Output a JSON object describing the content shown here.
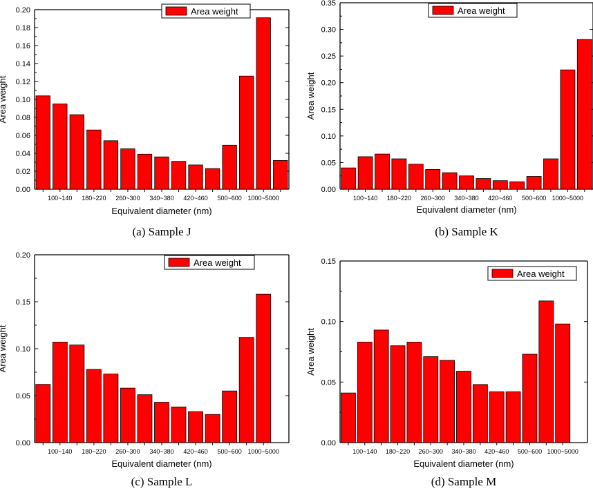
{
  "colors": {
    "bar_fill": "#ff0000",
    "bar_stroke": "#000000"
  },
  "chart_data": [
    {
      "type": "bar",
      "caption": "(a) Sample J",
      "legend": "Area weight",
      "xlabel": "Equivalent diameter (nm)",
      "ylabel": "Area weight",
      "ylim": [
        0,
        0.2
      ],
      "yticks": [
        "0.00",
        "0.02",
        "0.04",
        "0.06",
        "0.08",
        "0.10",
        "0.12",
        "0.14",
        "0.16",
        "0.18",
        "0.20"
      ],
      "tick_labels": [
        "100~140",
        "180~220",
        "260~300",
        "340~380",
        "420~460",
        "500~600",
        "1000~5000"
      ],
      "values": [
        0.104,
        0.095,
        0.083,
        0.066,
        0.054,
        0.045,
        0.039,
        0.036,
        0.031,
        0.027,
        0.023,
        0.049,
        0.126,
        0.191,
        0.032
      ]
    },
    {
      "type": "bar",
      "caption": "(b) Sample K",
      "legend": "Area weight",
      "xlabel": "Equivalent diameter (nm)",
      "ylabel": "Area weight",
      "ylim": [
        0,
        0.35
      ],
      "yticks": [
        "0.00",
        "0.05",
        "0.10",
        "0.15",
        "0.20",
        "0.25",
        "0.30",
        "0.35"
      ],
      "tick_labels": [
        "100~140",
        "180~220",
        "260~300",
        "340~380",
        "420~460",
        "500~600",
        "1000~5000"
      ],
      "values": [
        0.04,
        0.061,
        0.066,
        0.057,
        0.047,
        0.037,
        0.031,
        0.025,
        0.02,
        0.016,
        0.014,
        0.024,
        0.057,
        0.224,
        0.281
      ]
    },
    {
      "type": "bar",
      "caption": "(c) Sample L",
      "legend": "Area weight",
      "xlabel": "Equivalent diameter (nm)",
      "ylabel": "Area weight",
      "ylim": [
        0,
        0.2
      ],
      "yticks": [
        "0.00",
        "0.05",
        "0.10",
        "0.15",
        "0.20"
      ],
      "tick_labels": [
        "100~140",
        "180~220",
        "260~300",
        "340~380",
        "420~460",
        "500~600",
        "1000~5000"
      ],
      "values": [
        0.062,
        0.107,
        0.104,
        0.078,
        0.073,
        0.058,
        0.051,
        0.043,
        0.038,
        0.033,
        0.03,
        0.055,
        0.112,
        0.158
      ]
    },
    {
      "type": "bar",
      "caption": "(d) Sample M",
      "legend": "Area weight",
      "xlabel": "Equivalent diameter (nm)",
      "ylabel": "Area weight",
      "ylim": [
        0,
        0.15
      ],
      "yticks": [
        "0.00",
        "0.05",
        "0.10",
        "0.15"
      ],
      "tick_labels": [
        "100~140",
        "180~220",
        "260~300",
        "340~380",
        "420~460",
        "500~600",
        "1000~5000"
      ],
      "values": [
        0.041,
        0.083,
        0.093,
        0.08,
        0.083,
        0.071,
        0.068,
        0.059,
        0.048,
        0.042,
        0.042,
        0.073,
        0.117,
        0.098
      ]
    }
  ]
}
